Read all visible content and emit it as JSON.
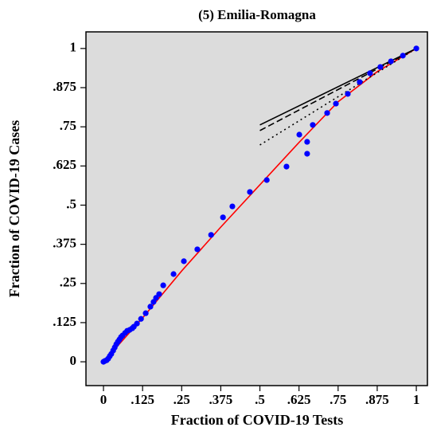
{
  "chart_data": {
    "type": "scatter",
    "title": "(5) Emilia-Romagna",
    "x_label": "Fraction of COVID-19 Tests",
    "y_label": "Fraction of COVID-19 Cases",
    "xlim": [
      -0.056,
      1.038
    ],
    "ylim": [
      -0.076,
      1.053
    ],
    "xticks": [
      0,
      {
        "value": 0.125,
        "label": ".125"
      },
      {
        "value": 0.25,
        "label": ".25"
      },
      {
        "value": 0.375,
        "label": ".375"
      },
      {
        "value": 0.5,
        "label": ".5"
      },
      {
        "value": 0.625,
        "label": ".625"
      },
      {
        "value": 0.75,
        "label": ".75"
      },
      {
        "value": 0.875,
        "label": ".875"
      },
      1
    ],
    "yticks": [
      0,
      {
        "value": 0.125,
        "label": ".125"
      },
      {
        "value": 0.25,
        "label": ".25"
      },
      {
        "value": 0.375,
        "label": ".375"
      },
      {
        "value": 0.5,
        "label": ".5"
      },
      {
        "value": 0.625,
        "label": ".625"
      },
      {
        "value": 0.75,
        "label": ".75"
      },
      {
        "value": 0.875,
        "label": ".875"
      },
      1
    ],
    "background": "#dcdcdc",
    "series": [
      {
        "mode": "lines",
        "dash": "solid",
        "color": "#ff0000",
        "x": [
          0,
          0.125,
          0.25,
          0.375,
          0.5,
          0.625,
          0.75,
          0.875,
          1
        ],
        "y": [
          0,
          0.14,
          0.29,
          0.43,
          0.565,
          0.7,
          0.83,
          0.926,
          1
        ]
      },
      {
        "mode": "lines",
        "dash": "solid",
        "color": "#000000",
        "x": [
          0.5,
          1
        ],
        "y": [
          0.756,
          1
        ]
      },
      {
        "mode": "lines",
        "dash": "dashed",
        "color": "#000000",
        "x": [
          0.5,
          1
        ],
        "y": [
          0.738,
          1
        ]
      },
      {
        "mode": "lines",
        "dash": "dotted",
        "color": "#000000",
        "x": [
          0.5,
          1
        ],
        "y": [
          0.692,
          1
        ]
      },
      {
        "mode": "markers",
        "color": "#0000ff",
        "x": [
          0,
          0.005,
          0.01,
          0.015,
          0.02,
          0.025,
          0.031,
          0.036,
          0.041,
          0.046,
          0.051,
          0.056,
          0.061,
          0.069,
          0.076,
          0.084,
          0.092,
          0.097,
          0.107,
          0.12,
          0.135,
          0.15,
          0.16,
          0.168,
          0.178,
          0.191,
          0.224,
          0.257,
          0.3,
          0.344,
          0.382,
          0.412,
          0.468,
          0.522,
          0.585,
          0.626,
          0.651,
          0.651,
          0.669,
          0.715,
          0.743,
          0.781,
          0.819,
          0.852,
          0.885,
          0.919,
          0.957,
          1
        ],
        "y": [
          0,
          0.003,
          0.005,
          0.01,
          0.018,
          0.025,
          0.036,
          0.046,
          0.056,
          0.064,
          0.071,
          0.079,
          0.084,
          0.092,
          0.099,
          0.102,
          0.107,
          0.112,
          0.122,
          0.137,
          0.155,
          0.176,
          0.191,
          0.204,
          0.216,
          0.244,
          0.28,
          0.321,
          0.359,
          0.405,
          0.461,
          0.496,
          0.542,
          0.58,
          0.623,
          0.725,
          0.702,
          0.664,
          0.756,
          0.794,
          0.824,
          0.855,
          0.893,
          0.921,
          0.941,
          0.959,
          0.977,
          1
        ]
      }
    ]
  }
}
